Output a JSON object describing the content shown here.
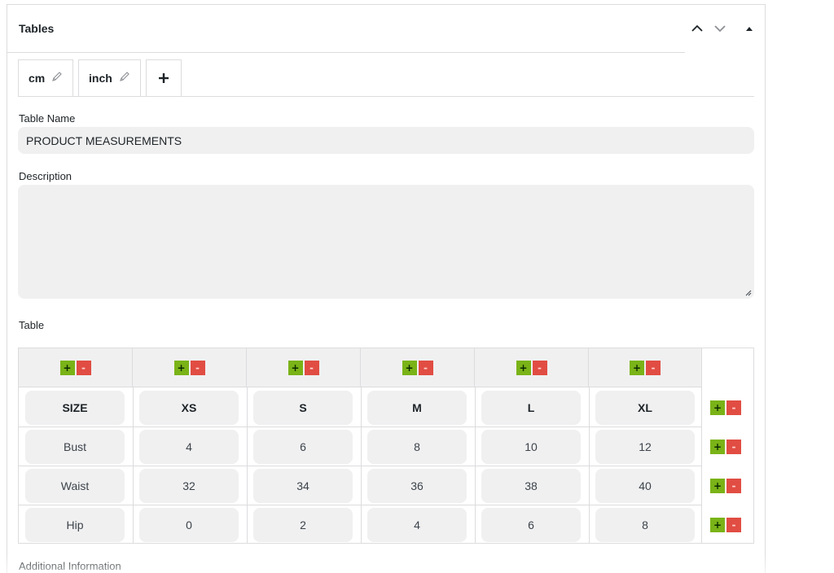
{
  "panel": {
    "title": "Tables"
  },
  "tabs": [
    {
      "label": "cm"
    },
    {
      "label": "inch"
    }
  ],
  "add_tab_symbol": "+",
  "fields": {
    "name_label": "Table Name",
    "name_value": "PRODUCT MEASUREMENTS",
    "description_label": "Description",
    "description_value": "",
    "table_label": "Table",
    "additional_label": "Additional Information"
  },
  "table": {
    "rows": [
      [
        "SIZE",
        "XS",
        "S",
        "M",
        "L",
        "XL"
      ],
      [
        "Bust",
        "4",
        "6",
        "8",
        "10",
        "12"
      ],
      [
        "Waist",
        "32",
        "34",
        "36",
        "38",
        "40"
      ],
      [
        "Hip",
        "0",
        "2",
        "4",
        "6",
        "8"
      ]
    ],
    "add_symbol": "+",
    "remove_symbol": "-"
  },
  "colors": {
    "add_button": "#7ab317",
    "remove_button": "#e14d43",
    "field_bg": "#f0f0f1"
  },
  "icons": {
    "collapse_up": "chevron-up-icon",
    "move_down": "chevron-down-icon",
    "toggle": "triangle-up-icon",
    "edit": "pencil-icon",
    "add": "plus-icon"
  }
}
